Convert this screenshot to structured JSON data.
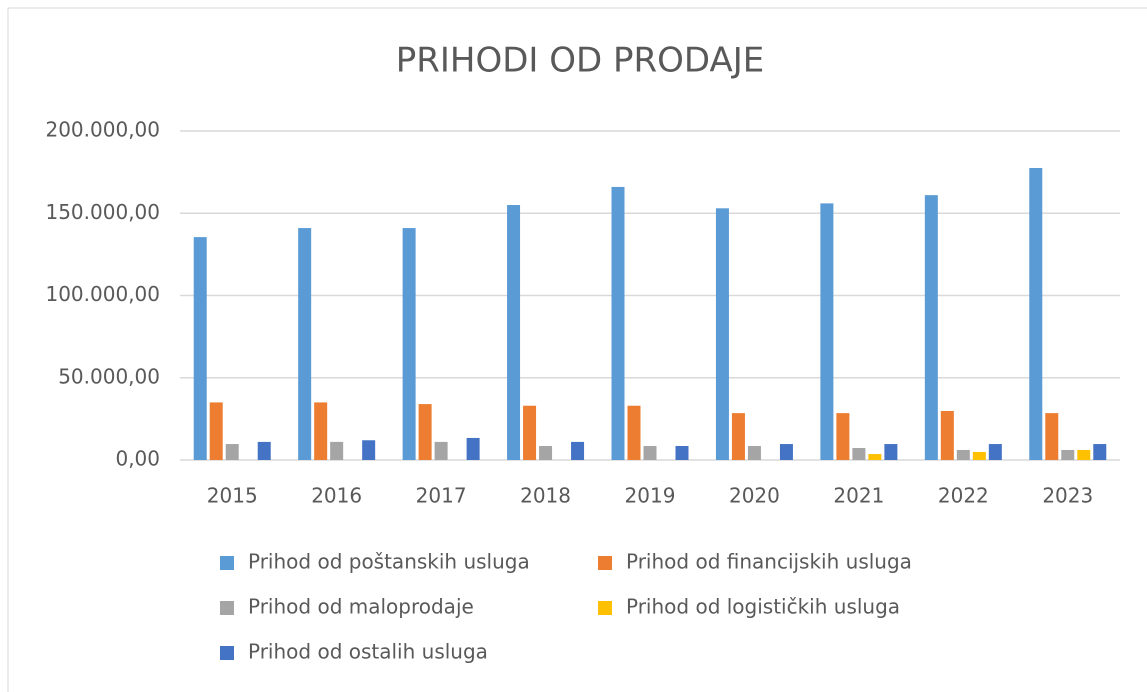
{
  "chart_data": {
    "type": "bar",
    "title": "PRIHODI OD PRODAJE",
    "categories": [
      "2015",
      "2016",
      "2017",
      "2018",
      "2019",
      "2020",
      "2021",
      "2022",
      "2023"
    ],
    "series": [
      {
        "name": "Prihod od poštanskih usluga",
        "color": "#5b9bd5",
        "values": [
          135500,
          141000,
          141000,
          155000,
          166000,
          153000,
          156000,
          161000,
          177500
        ]
      },
      {
        "name": "Prihod od financijskih usluga",
        "color": "#ed7d31",
        "values": [
          35000,
          35000,
          34000,
          33000,
          33000,
          28500,
          28500,
          29800,
          28500
        ]
      },
      {
        "name": "Prihod od maloprodaje",
        "color": "#a5a5a5",
        "values": [
          9700,
          11000,
          11000,
          8500,
          8500,
          8500,
          7300,
          6100,
          6100
        ]
      },
      {
        "name": "Prihod od logističkih usluga",
        "color": "#ffc000",
        "values": [
          0,
          0,
          0,
          0,
          0,
          0,
          3600,
          4900,
          6100
        ]
      },
      {
        "name": "Prihod od ostalih usluga",
        "color": "#4472c4",
        "values": [
          11000,
          12000,
          13400,
          11000,
          8500,
          9700,
          9700,
          9700,
          9700
        ]
      }
    ],
    "ylim": [
      0,
      200000
    ],
    "yticks": [
      {
        "value": 0,
        "label": "0,00"
      },
      {
        "value": 50000,
        "label": "50.000,00"
      },
      {
        "value": 100000,
        "label": "100.000,00"
      },
      {
        "value": 150000,
        "label": "150.000,00"
      },
      {
        "value": 200000,
        "label": "200.000,00"
      }
    ],
    "grid": true,
    "legend": "bottom"
  }
}
